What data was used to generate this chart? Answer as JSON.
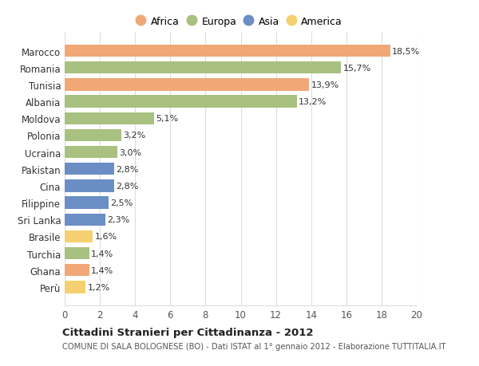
{
  "categories": [
    "Marocco",
    "Romania",
    "Tunisia",
    "Albania",
    "Moldova",
    "Polonia",
    "Ucraina",
    "Pakistan",
    "Cina",
    "Filippine",
    "Sri Lanka",
    "Brasile",
    "Turchia",
    "Ghana",
    "Perù"
  ],
  "values": [
    18.5,
    15.7,
    13.9,
    13.2,
    5.1,
    3.2,
    3.0,
    2.8,
    2.8,
    2.5,
    2.3,
    1.6,
    1.4,
    1.4,
    1.2
  ],
  "labels": [
    "18,5%",
    "15,7%",
    "13,9%",
    "13,2%",
    "5,1%",
    "3,2%",
    "3,0%",
    "2,8%",
    "2,8%",
    "2,5%",
    "2,3%",
    "1,6%",
    "1,4%",
    "1,4%",
    "1,2%"
  ],
  "continents": [
    "Africa",
    "Europa",
    "Africa",
    "Europa",
    "Europa",
    "Europa",
    "Europa",
    "Asia",
    "Asia",
    "Asia",
    "Asia",
    "America",
    "Europa",
    "Africa",
    "America"
  ],
  "colors": {
    "Africa": "#F0A876",
    "Europa": "#A8C080",
    "Asia": "#6B8EC4",
    "America": "#F5D070"
  },
  "legend_order": [
    "Africa",
    "Europa",
    "Asia",
    "America"
  ],
  "title": "Cittadini Stranieri per Cittadinanza - 2012",
  "subtitle": "COMUNE DI SALA BOLOGNESE (BO) - Dati ISTAT al 1° gennaio 2012 - Elaborazione TUTTITALIA.IT",
  "xlim": [
    0,
    20
  ],
  "xticks": [
    0,
    2,
    4,
    6,
    8,
    10,
    12,
    14,
    16,
    18,
    20
  ],
  "background_color": "#ffffff",
  "grid_color": "#dddddd"
}
